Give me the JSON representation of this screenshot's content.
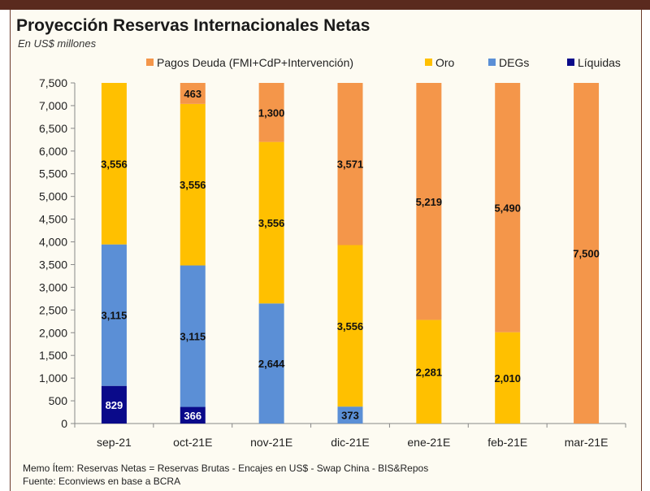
{
  "title": "Proyección Reservas Internacionales Netas",
  "subtitle": "En US$ millones",
  "footnotes": {
    "memo": "Memo Ítem: Reservas Netas = Reservas Brutas - Encajes en US$ - Swap China - BIS&Repos",
    "source": "Fuente: Econviews en base a BCRA"
  },
  "colors": {
    "liquidas": "#0a0a8a",
    "degs": "#5b8fd6",
    "oro": "#ffc000",
    "pagos": "#f4964a"
  },
  "chart_data": {
    "type": "bar",
    "stacked": true,
    "categories": [
      "sep-21",
      "oct-21E",
      "nov-21E",
      "dic-21E",
      "ene-21E",
      "feb-21E",
      "mar-21E"
    ],
    "ylim": [
      0,
      7500
    ],
    "yticks": [
      "0",
      "500",
      "1,000",
      "1,500",
      "2,000",
      "2,500",
      "3,000",
      "3,500",
      "4,000",
      "4,500",
      "5,000",
      "5,500",
      "6,000",
      "6,500",
      "7,000",
      "7,500"
    ],
    "ytick_values": [
      0,
      500,
      1000,
      1500,
      2000,
      2500,
      3000,
      3500,
      4000,
      4500,
      5000,
      5500,
      6000,
      6500,
      7000,
      7500
    ],
    "legend_position": "top",
    "series": [
      {
        "key": "liquidas",
        "name": "Líquidas",
        "values": [
          829,
          366,
          0,
          0,
          0,
          0,
          0
        ],
        "labels": [
          "829",
          "366",
          "",
          "",
          "",
          "",
          ""
        ]
      },
      {
        "key": "degs",
        "name": "DEGs",
        "values": [
          3115,
          3115,
          2644,
          373,
          0,
          0,
          0
        ],
        "labels": [
          "3,115",
          "3,115",
          "2,644",
          "373",
          "",
          "",
          ""
        ]
      },
      {
        "key": "oro",
        "name": "Oro",
        "values": [
          3556,
          3556,
          3556,
          3556,
          2281,
          2010,
          0
        ],
        "labels": [
          "3,556",
          "3,556",
          "3,556",
          "3,556",
          "2,281",
          "2,010",
          ""
        ]
      },
      {
        "key": "pagos",
        "name": "Pagos Deuda (FMI+CdP+Intervención)",
        "values": [
          0,
          463,
          1300,
          3571,
          5219,
          5490,
          7500
        ],
        "labels": [
          "",
          "463",
          "1,300",
          "3,571",
          "5,219",
          "5,490",
          "7,500"
        ]
      }
    ],
    "legend_order": [
      "pagos",
      "oro",
      "degs",
      "liquidas"
    ]
  }
}
